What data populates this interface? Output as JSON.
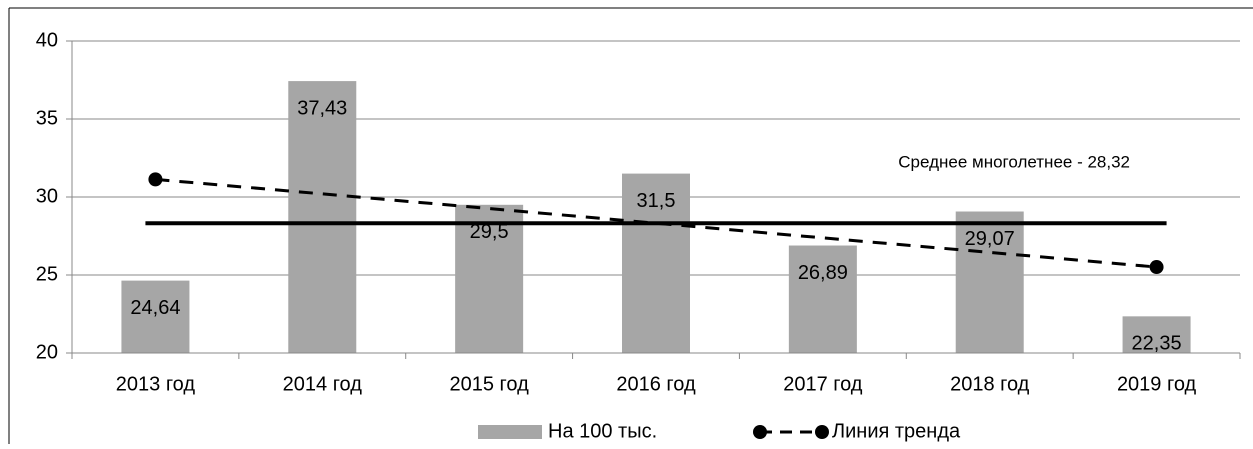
{
  "chart_data": {
    "type": "bar",
    "categories": [
      "2013 год",
      "2014 год",
      "2015 год",
      "2016 год",
      "2017 год",
      "2018 год",
      "2019 год"
    ],
    "series": [
      {
        "name": "На 100 тыс.",
        "color": "#a6a6a6",
        "values": [
          24.64,
          37.43,
          29.5,
          31.5,
          26.89,
          29.07,
          22.35
        ],
        "value_labels": [
          "24,64",
          "37,43",
          "29,5",
          "31,5",
          "26,89",
          "29,07",
          "22,35"
        ]
      },
      {
        "name": "Линия тренда",
        "color": "#000000",
        "values": [
          31.13,
          30.2,
          29.26,
          28.32,
          27.38,
          26.45,
          25.51
        ]
      }
    ],
    "mean": {
      "value": 28.32,
      "label": "Среднее  многолетнее  - 28,32"
    },
    "ylim": [
      20,
      40
    ],
    "yticks": [
      20,
      25,
      30,
      35,
      40
    ],
    "grid": true,
    "legend": "bottom"
  }
}
